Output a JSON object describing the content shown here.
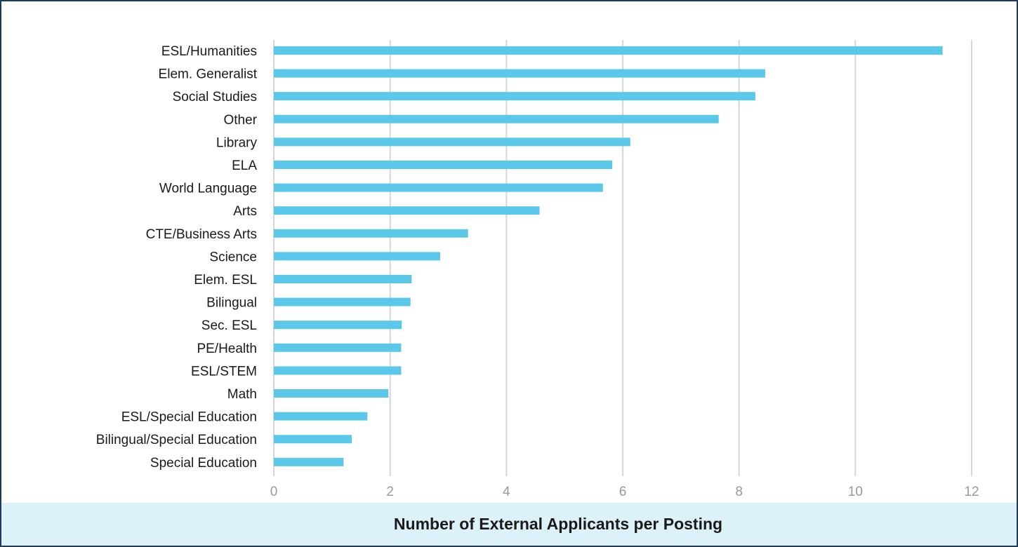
{
  "chart_data": {
    "type": "bar",
    "orientation": "horizontal",
    "categories": [
      "ESL/Humanities",
      "Elem. Generalist",
      "Social Studies",
      "Other",
      "Library",
      "ELA",
      "World Language",
      "Arts",
      "CTE/Business Arts",
      "Science",
      "Elem. ESL",
      "Bilingual",
      "Sec. ESL",
      "PE/Health",
      "ESL/STEM",
      "Math",
      "ESL/Special Education",
      "Bilingual/Special Education",
      "Special Education"
    ],
    "values": [
      11.5,
      8.45,
      8.28,
      7.65,
      6.13,
      5.82,
      5.66,
      4.57,
      3.34,
      2.86,
      2.37,
      2.35,
      2.2,
      2.19,
      2.19,
      1.97,
      1.61,
      1.34,
      1.2
    ],
    "xlim": [
      0,
      12
    ],
    "xticks": [
      "0",
      "2",
      "4",
      "6",
      "8",
      "10",
      "12"
    ],
    "xlabel": "Number of External Applicants per Posting",
    "ylabel": "",
    "title": "",
    "grid": true,
    "bar_color": "#5bc8ea",
    "grid_color": "#d6d6d6",
    "xlabel_band_color": "#dcf1f8"
  }
}
